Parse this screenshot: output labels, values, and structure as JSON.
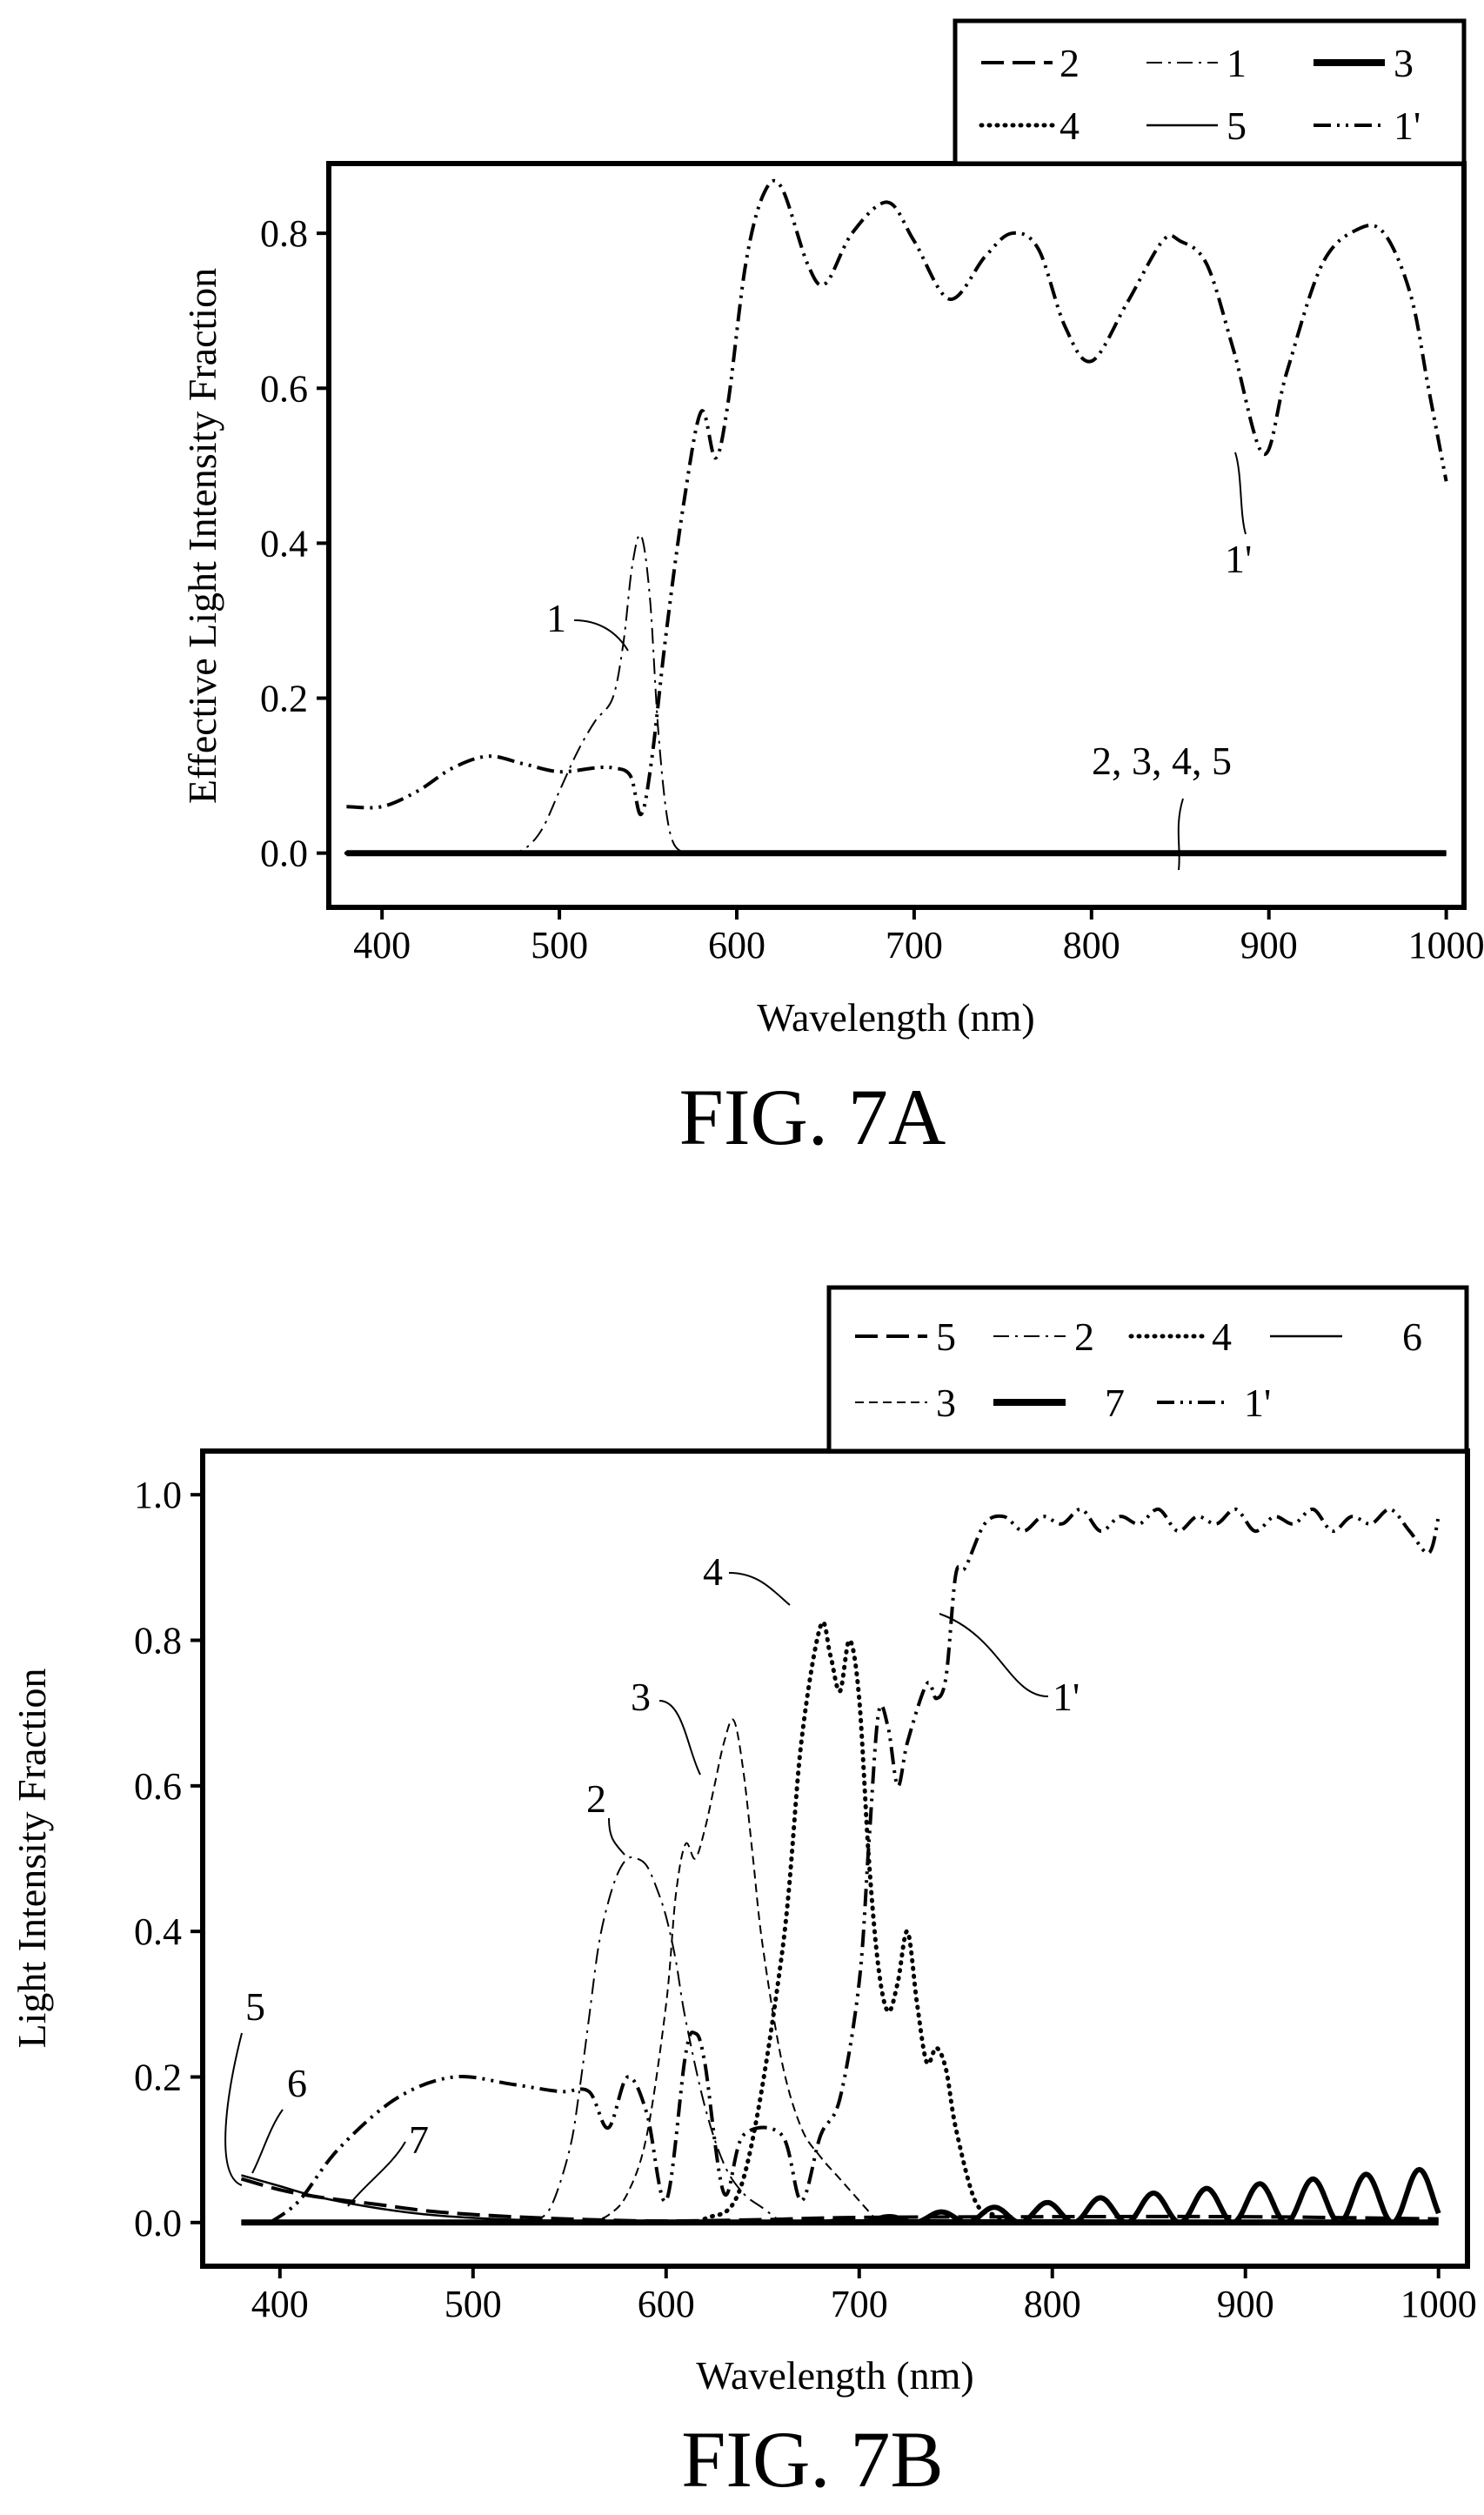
{
  "figures": {
    "a": {
      "label": "FIG. 7A"
    },
    "b": {
      "label": "FIG. 7B"
    }
  },
  "chart_data": [
    {
      "type": "line",
      "figure_label": "FIG. 7A",
      "xlabel": "Wavelength (nm)",
      "ylabel": "Effective Light Intensity Fraction",
      "xlim": [
        370,
        1010
      ],
      "ylim": [
        -0.07,
        0.89
      ],
      "xticks": [
        "400",
        "500",
        "600",
        "700",
        "800",
        "900",
        "1000"
      ],
      "yticks": [
        "0.0",
        "0.2",
        "0.4",
        "0.6",
        "0.8"
      ],
      "legend_position": "top-right",
      "legend": [
        "2",
        "1",
        "3",
        "4",
        "5",
        "1'"
      ],
      "annotations": [
        "1",
        "1'",
        "2, 3, 4, 5"
      ],
      "series": [
        {
          "name": "1'",
          "style": "dash-dot-dot",
          "x": [
            380,
            400,
            420,
            440,
            460,
            480,
            500,
            520,
            530,
            540,
            546,
            552,
            560,
            570,
            580,
            588,
            595,
            605,
            615,
            625,
            640,
            650,
            665,
            685,
            700,
            720,
            740,
            755,
            770,
            785,
            800,
            820,
            840,
            850,
            865,
            880,
            897,
            910,
            930,
            950,
            965,
            980,
            990,
            1000
          ],
          "y": [
            0.06,
            0.06,
            0.08,
            0.11,
            0.125,
            0.115,
            0.105,
            0.11,
            0.11,
            0.1,
            0.05,
            0.12,
            0.28,
            0.45,
            0.57,
            0.51,
            0.58,
            0.76,
            0.85,
            0.86,
            0.76,
            0.735,
            0.8,
            0.84,
            0.79,
            0.715,
            0.77,
            0.8,
            0.78,
            0.68,
            0.635,
            0.71,
            0.79,
            0.79,
            0.76,
            0.65,
            0.515,
            0.62,
            0.76,
            0.805,
            0.8,
            0.72,
            0.6,
            0.48
          ]
        },
        {
          "name": "1",
          "style": "dash-dot",
          "x": [
            470,
            480,
            490,
            500,
            510,
            520,
            530,
            536,
            541,
            546,
            551,
            556,
            562,
            570,
            580
          ],
          "y": [
            0.0,
            0.005,
            0.03,
            0.08,
            0.13,
            0.17,
            0.2,
            0.27,
            0.37,
            0.41,
            0.33,
            0.15,
            0.03,
            0.0,
            0.0
          ]
        },
        {
          "name": "2",
          "style": "long-dash",
          "x": [
            380,
            1000
          ],
          "y": [
            0.0,
            0.0
          ]
        },
        {
          "name": "3",
          "style": "thick-solid",
          "x": [
            380,
            1000
          ],
          "y": [
            0.0,
            0.0
          ]
        },
        {
          "name": "4",
          "style": "dotted",
          "x": [
            380,
            1000
          ],
          "y": [
            0.0,
            0.0
          ]
        },
        {
          "name": "5",
          "style": "solid",
          "x": [
            380,
            1000
          ],
          "y": [
            0.0,
            0.0
          ]
        }
      ]
    },
    {
      "type": "line",
      "figure_label": "FIG. 7B",
      "xlabel": "Wavelength (nm)",
      "ylabel": "Light Intensity Fraction",
      "xlim": [
        360,
        1015
      ],
      "ylim": [
        -0.06,
        1.06
      ],
      "xticks": [
        "400",
        "500",
        "600",
        "700",
        "800",
        "900",
        "1000"
      ],
      "yticks": [
        "0.0",
        "0.2",
        "0.4",
        "0.6",
        "0.8",
        "1.0"
      ],
      "legend_position": "top-right",
      "legend": [
        "5",
        "2",
        "4",
        "6",
        "3",
        "7",
        "1'"
      ],
      "annotations": [
        "1'",
        "2",
        "3",
        "4",
        "5",
        "6",
        "7"
      ],
      "series": [
        {
          "name": "1'",
          "style": "dash-dot-dot",
          "x": [
            395,
            410,
            430,
            460,
            490,
            520,
            545,
            560,
            570,
            580,
            590,
            600,
            610,
            615,
            620,
            630,
            640,
            660,
            670,
            680,
            690,
            700,
            705,
            710,
            715,
            720,
            725,
            735,
            740,
            745,
            750,
            755,
            765,
            775,
            785,
            795,
            805,
            815,
            825,
            835,
            845,
            855,
            865,
            875,
            885,
            895,
            905,
            915,
            925,
            935,
            945,
            955,
            965,
            975,
            985,
            995,
            1000
          ],
          "y": [
            0.0,
            0.03,
            0.1,
            0.17,
            0.2,
            0.19,
            0.18,
            0.18,
            0.13,
            0.2,
            0.15,
            0.03,
            0.23,
            0.26,
            0.22,
            0.04,
            0.12,
            0.12,
            0.03,
            0.12,
            0.17,
            0.33,
            0.52,
            0.7,
            0.68,
            0.6,
            0.66,
            0.74,
            0.72,
            0.75,
            0.89,
            0.9,
            0.96,
            0.97,
            0.95,
            0.97,
            0.96,
            0.98,
            0.95,
            0.97,
            0.96,
            0.98,
            0.95,
            0.97,
            0.96,
            0.98,
            0.95,
            0.97,
            0.96,
            0.98,
            0.95,
            0.97,
            0.96,
            0.98,
            0.95,
            0.92,
            0.97
          ]
        },
        {
          "name": "2",
          "style": "dash-dot",
          "x": [
            530,
            540,
            550,
            555,
            560,
            565,
            570,
            575,
            580,
            585,
            590,
            595,
            600,
            605,
            610,
            620,
            630,
            640,
            650,
            660
          ],
          "y": [
            0.0,
            0.02,
            0.1,
            0.18,
            0.28,
            0.38,
            0.44,
            0.48,
            0.5,
            0.5,
            0.49,
            0.46,
            0.42,
            0.36,
            0.28,
            0.16,
            0.08,
            0.04,
            0.02,
            0.0
          ]
        },
        {
          "name": "3",
          "style": "thin-dash",
          "x": [
            560,
            570,
            580,
            590,
            600,
            605,
            610,
            615,
            620,
            625,
            630,
            635,
            640,
            645,
            650,
            660,
            670,
            680,
            690,
            700,
            710
          ],
          "y": [
            0.0,
            0.01,
            0.04,
            0.12,
            0.3,
            0.45,
            0.52,
            0.5,
            0.54,
            0.6,
            0.66,
            0.69,
            0.62,
            0.5,
            0.38,
            0.22,
            0.13,
            0.09,
            0.06,
            0.03,
            0.0
          ]
        },
        {
          "name": "4",
          "style": "dotted",
          "x": [
            600,
            620,
            640,
            660,
            670,
            680,
            685,
            690,
            695,
            700,
            705,
            710,
            715,
            720,
            725,
            730,
            735,
            740,
            745,
            750,
            760,
            770,
            780
          ],
          "y": [
            0.0,
            0.005,
            0.06,
            0.37,
            0.66,
            0.82,
            0.78,
            0.73,
            0.8,
            0.72,
            0.5,
            0.35,
            0.29,
            0.33,
            0.4,
            0.3,
            0.22,
            0.24,
            0.21,
            0.13,
            0.03,
            0.01,
            0.0
          ]
        },
        {
          "name": "5",
          "style": "long-dash",
          "x": [
            380,
            400,
            420,
            450,
            480,
            520,
            560,
            600,
            650,
            700,
            800,
            900,
            1000
          ],
          "y": [
            0.06,
            0.045,
            0.035,
            0.025,
            0.015,
            0.008,
            0.004,
            0.002,
            0.004,
            0.007,
            0.008,
            0.008,
            0.005
          ]
        },
        {
          "name": "6",
          "style": "solid",
          "x": [
            380,
            400,
            420,
            450,
            480,
            520,
            560,
            600,
            650,
            700,
            800,
            900,
            1000
          ],
          "y": [
            0.065,
            0.05,
            0.035,
            0.02,
            0.01,
            0.004,
            0.002,
            0.001,
            0.002,
            0.003,
            0.003,
            0.002,
            0.001
          ]
        },
        {
          "name": "7",
          "style": "thick-solid",
          "x": [
            380,
            1000
          ],
          "y": [
            0.0,
            0.0
          ]
        }
      ]
    }
  ]
}
